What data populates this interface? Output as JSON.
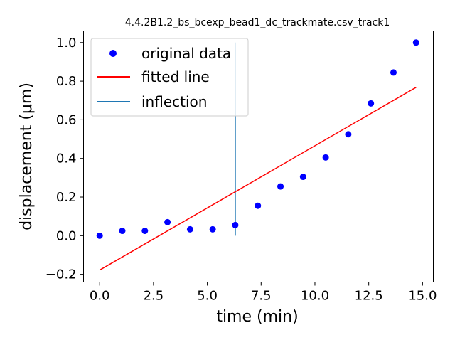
{
  "chart_data": {
    "type": "scatter",
    "title": "4.4.2B1.2_bs_bcexp_bead1_dc_trackmate.csv_track1",
    "xlabel": "time (min)",
    "ylabel": "displacement (μm)",
    "xlim": [
      -0.75,
      15.5
    ],
    "ylim": [
      -0.24,
      1.06
    ],
    "grid": false,
    "legend_position": "upper-left",
    "xticks": [
      0.0,
      2.5,
      5.0,
      7.5,
      10.0,
      12.5,
      15.0
    ],
    "xtick_labels": [
      "0.0",
      "2.5",
      "5.0",
      "7.5",
      "10.0",
      "12.5",
      "15.0"
    ],
    "yticks": [
      -0.2,
      0.0,
      0.2,
      0.4,
      0.6,
      0.8,
      1.0
    ],
    "ytick_labels": [
      "−0.2",
      "0.0",
      "0.2",
      "0.4",
      "0.6",
      "0.8",
      "1.0"
    ],
    "series": [
      {
        "name": "original data",
        "kind": "scatter",
        "color": "#0000ff",
        "x": [
          0.0,
          1.05,
          2.1,
          3.15,
          4.2,
          5.25,
          6.3,
          7.35,
          8.4,
          9.45,
          10.5,
          11.55,
          12.6,
          13.65,
          14.7
        ],
        "y": [
          0.0,
          0.025,
          0.025,
          0.07,
          0.033,
          0.033,
          0.055,
          0.155,
          0.255,
          0.305,
          0.405,
          0.525,
          0.685,
          0.845,
          1.0
        ]
      },
      {
        "name": "fitted line",
        "kind": "line",
        "color": "#ff0000",
        "x": [
          0.0,
          14.7
        ],
        "y": [
          -0.178,
          0.768
        ]
      },
      {
        "name": "inflection",
        "kind": "vline",
        "color": "#1f77b4",
        "x": 6.3,
        "ymin": 0.0,
        "ymax": 1.0
      }
    ]
  }
}
